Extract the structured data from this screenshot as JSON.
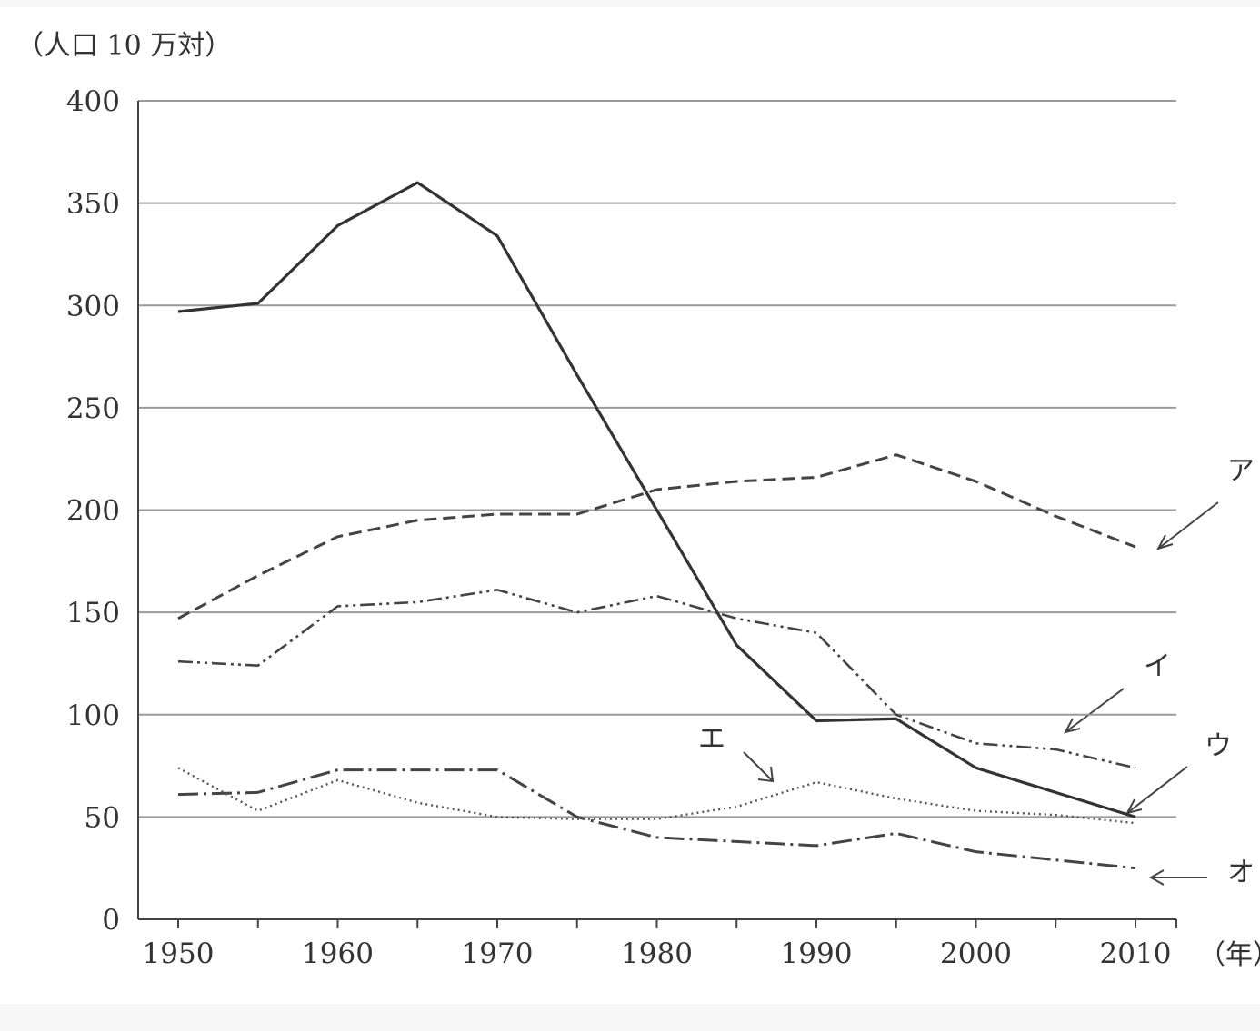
{
  "chart_data": {
    "type": "line",
    "ylabel": "（人口 10 万対）",
    "xlabel": "（年）",
    "ylim": [
      0,
      400
    ],
    "xlim": [
      1950,
      2010
    ],
    "grid": true,
    "y_ticks": [
      "0",
      "50",
      "100",
      "150",
      "200",
      "250",
      "300",
      "350",
      "400"
    ],
    "x_ticks": [
      "1950",
      "1960",
      "1970",
      "1980",
      "1990",
      "2000",
      "2010"
    ],
    "x": [
      1950,
      1955,
      1960,
      1965,
      1970,
      1975,
      1980,
      1985,
      1990,
      1995,
      2000,
      2005,
      2010
    ],
    "series": [
      {
        "label_key": "solid",
        "values": [
          297,
          301,
          339,
          360,
          334,
          266,
          200,
          134,
          97,
          98,
          74,
          62,
          50
        ]
      },
      {
        "label_key": "ア",
        "values": [
          147,
          168,
          187,
          195,
          198,
          198,
          210,
          214,
          216,
          227,
          214,
          197,
          182
        ]
      },
      {
        "label_key": "イ",
        "values": [
          126,
          124,
          153,
          155,
          161,
          150,
          158,
          147,
          140,
          100,
          86,
          83,
          74
        ]
      },
      {
        "label_key": "ウ",
        "values": [
          61,
          62,
          73,
          73,
          73,
          50,
          40,
          38,
          36,
          42,
          33,
          29,
          25
        ]
      },
      {
        "label_key": "エ",
        "values": [
          74,
          53,
          68,
          57,
          50,
          49,
          49,
          55,
          67,
          59,
          53,
          51,
          47
        ]
      }
    ],
    "annotations": [
      "ア",
      "イ",
      "ウ",
      "エ",
      "オ"
    ]
  }
}
